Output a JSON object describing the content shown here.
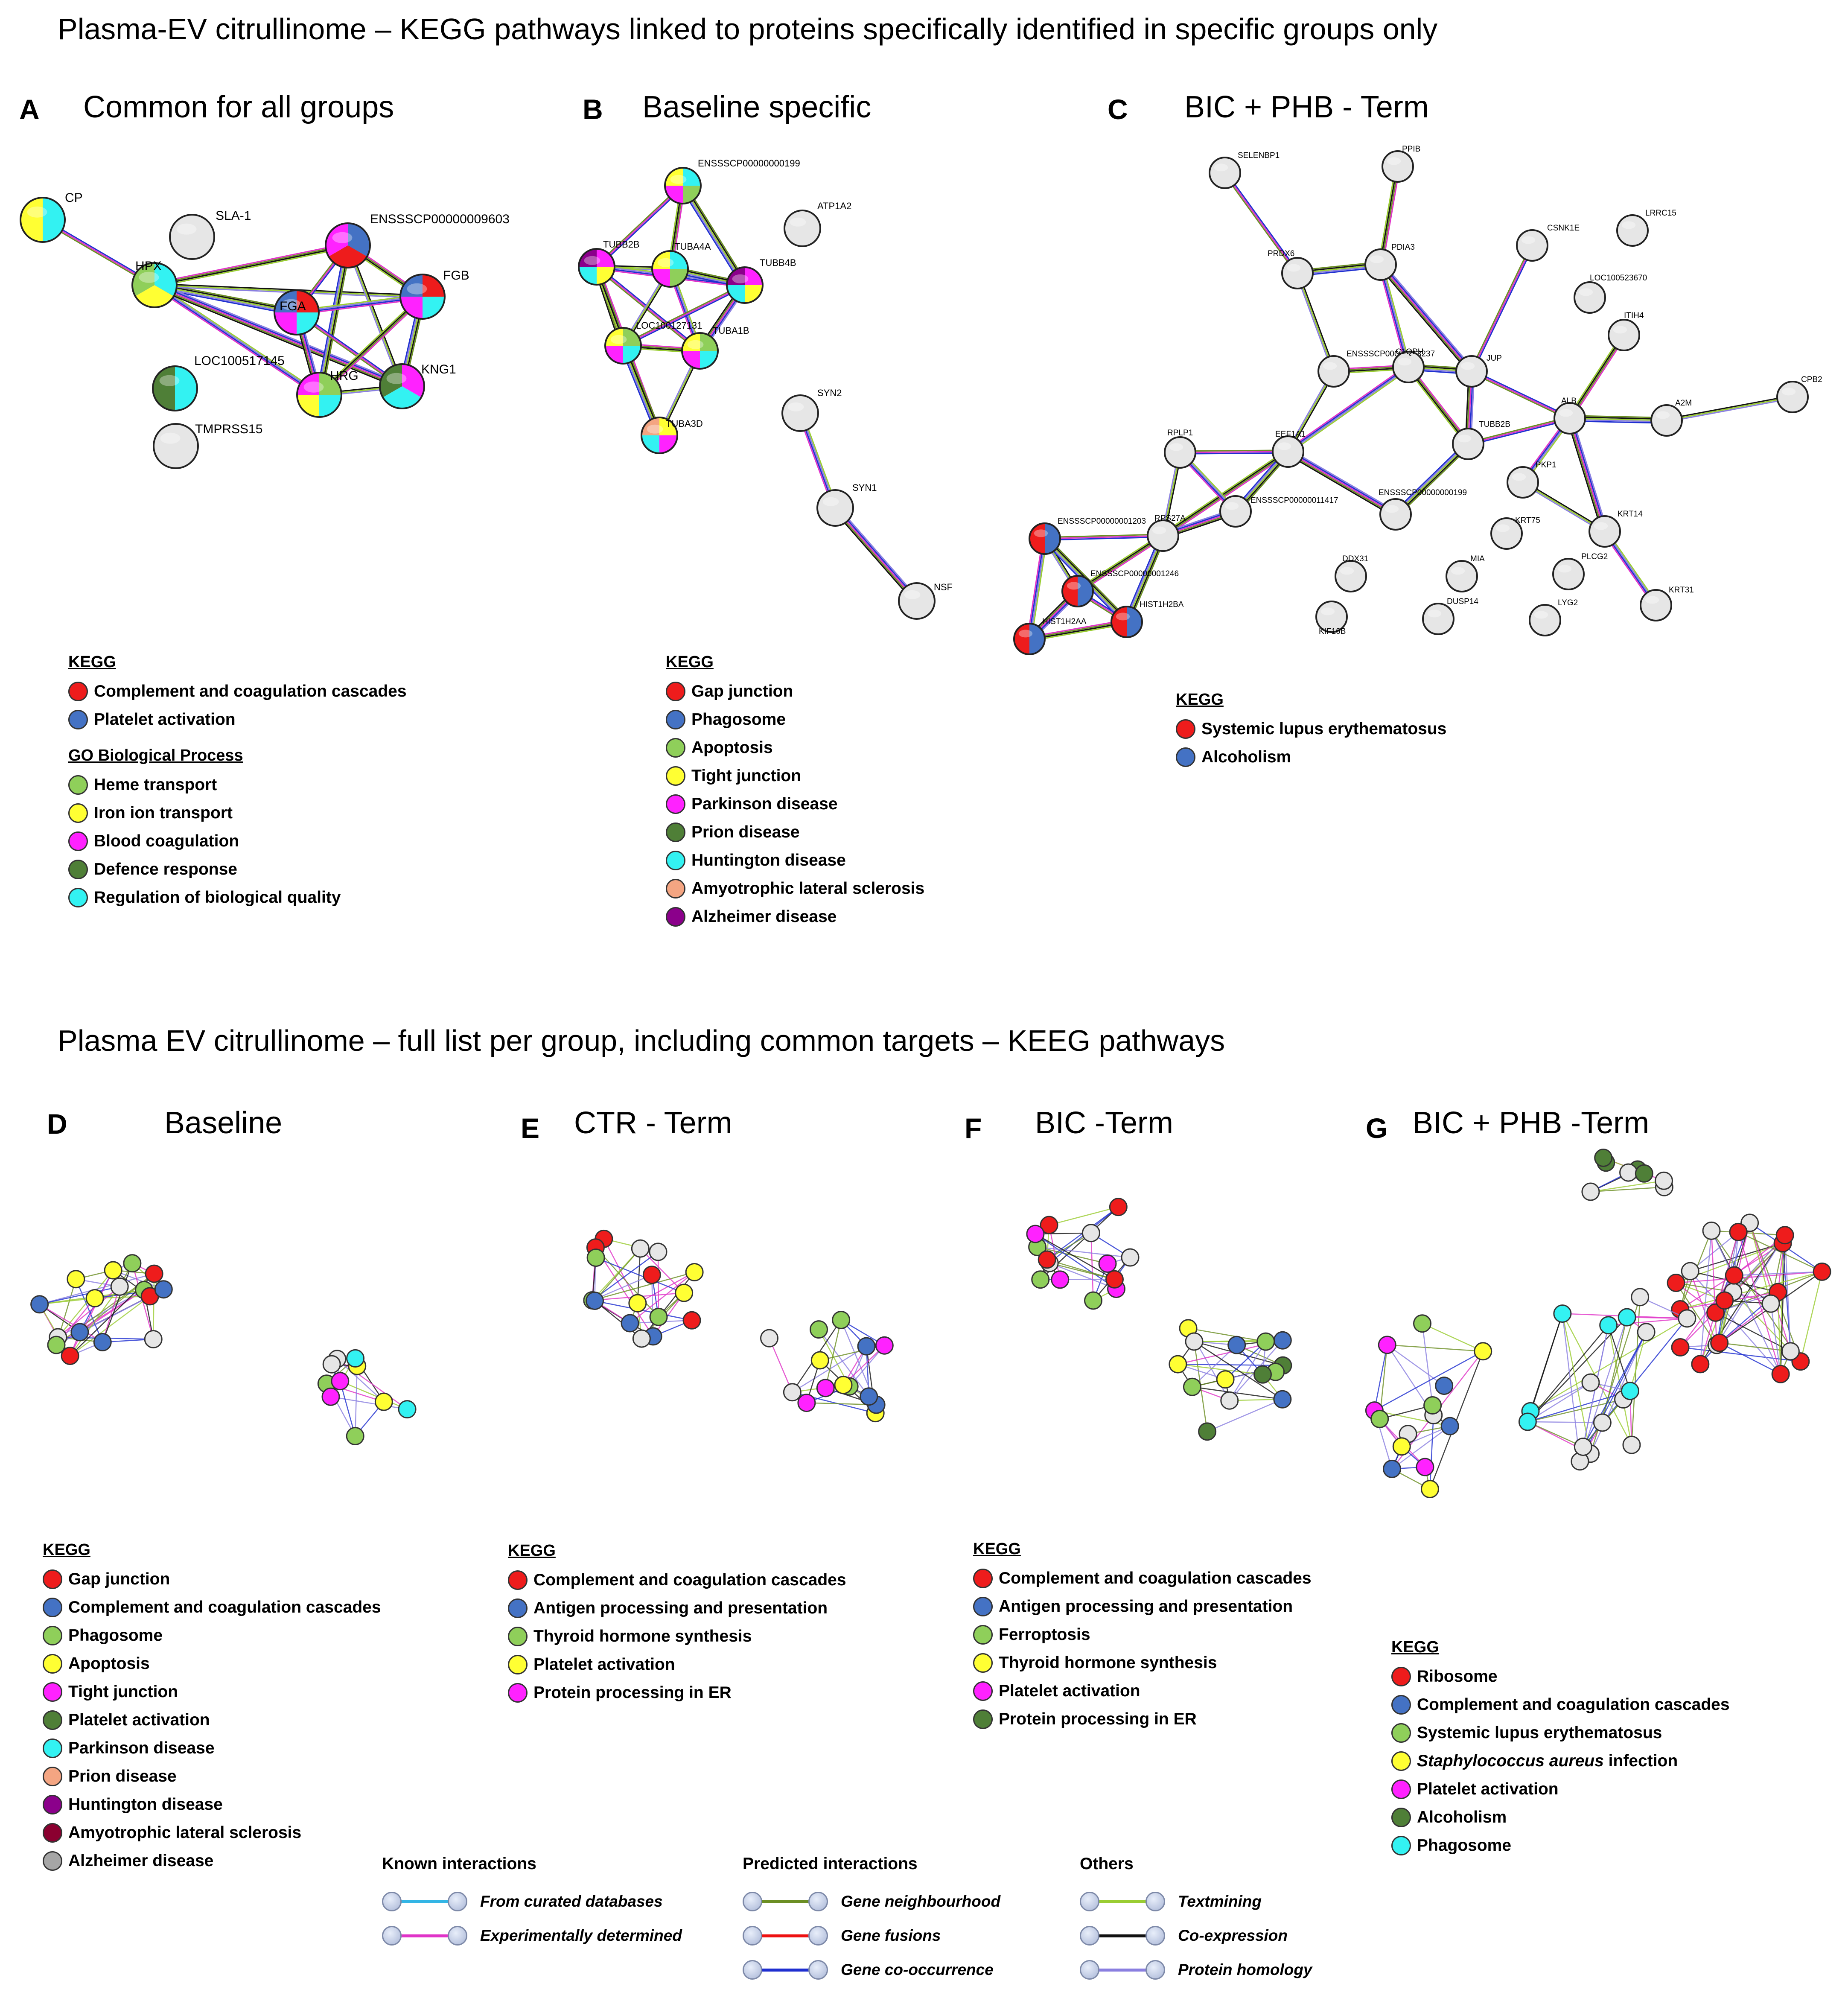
{
  "titles": {
    "top": "Plasma-EV citrullinome – KEGG pathways linked to proteins specifically identified in specific groups only",
    "bottom": "Plasma EV citrullinome – full list per group, including common targets – KEEG pathways"
  },
  "panels": {
    "A": {
      "letter": "A",
      "title": "Common for all groups"
    },
    "B": {
      "letter": "B",
      "title": "Baseline specific"
    },
    "C": {
      "letter": "C",
      "title": "BIC + PHB - Term"
    },
    "D": {
      "letter": "D",
      "title": "Baseline"
    },
    "E": {
      "letter": "E",
      "title": "CTR - Term"
    },
    "F": {
      "letter": "F",
      "title": "BIC -Term"
    },
    "G": {
      "letter": "G",
      "title": "BIC + PHB -Term"
    }
  },
  "legends": {
    "A": {
      "head": "KEGG",
      "items": [
        {
          "label": "Complement and coagulation  cascades",
          "color": "#ee1c1c"
        },
        {
          "label": "Platelet activation",
          "color": "#4472c4"
        }
      ],
      "go_head": "GO Biological  Process",
      "go_items": [
        {
          "label": "Heme transport",
          "color": "#8fcf5a"
        },
        {
          "label": "Iron ion transport",
          "color": "#ffff33"
        },
        {
          "label": "Blood coagulation",
          "color": "#ff22ff"
        },
        {
          "label": "Defence response",
          "color": "#4f7f37"
        },
        {
          "label": "Regulation of biological  quality",
          "color": "#33f2f2"
        }
      ]
    },
    "B": {
      "head": "KEGG",
      "items": [
        {
          "label": "Gap junction",
          "color": "#ee1c1c"
        },
        {
          "label": "Phagosome",
          "color": "#4472c4"
        },
        {
          "label": "Apoptosis",
          "color": "#8fcf5a"
        },
        {
          "label": "Tight junction",
          "color": "#ffff33"
        },
        {
          "label": "Parkinson  disease",
          "color": "#ff22ff"
        },
        {
          "label": "Prion disease",
          "color": "#4f7f37"
        },
        {
          "label": "Huntington disease",
          "color": "#33f2f2"
        },
        {
          "label": "Amyotrophic lateral sclerosis",
          "color": "#f4a582"
        },
        {
          "label": "Alzheimer disease",
          "color": "#8b008b"
        }
      ]
    },
    "C": {
      "head": "KEGG",
      "items": [
        {
          "label": "Systemic lupus erythematosus",
          "color": "#ee1c1c"
        },
        {
          "label": "Alcoholism",
          "color": "#4472c4"
        }
      ]
    },
    "D": {
      "head": "KEGG",
      "items": [
        {
          "label": "Gap junction",
          "color": "#ee1c1c"
        },
        {
          "label": "Complement and coagulation  cascades",
          "color": "#4472c4"
        },
        {
          "label": "Phagosome",
          "color": "#8fcf5a"
        },
        {
          "label": "Apoptosis",
          "color": "#ffff33"
        },
        {
          "label": "Tight junction",
          "color": "#ff22ff"
        },
        {
          "label": "Platelet activation",
          "color": "#4f7f37"
        },
        {
          "label": "Parkinson  disease",
          "color": "#33f2f2"
        },
        {
          "label": "Prion disease",
          "color": "#f4a582"
        },
        {
          "label": "Huntington disease",
          "color": "#8b008b"
        },
        {
          "label": "Amyotrophic lateral sclerosis",
          "color": "#8b0030"
        },
        {
          "label": "Alzheimer disease",
          "color": "#a6a6a6"
        }
      ]
    },
    "E": {
      "head": "KEGG",
      "items": [
        {
          "label": "Complement and coagulation  cascades",
          "color": "#ee1c1c"
        },
        {
          "label": "Antigen processing  and presentation",
          "color": "#4472c4"
        },
        {
          "label": "Thyroid hormone synthesis",
          "color": "#8fcf5a"
        },
        {
          "label": "Platelet activation",
          "color": "#ffff33"
        },
        {
          "label": "Protein processing in ER",
          "color": "#ff22ff"
        }
      ]
    },
    "F": {
      "head": "KEGG",
      "items": [
        {
          "label": "Complement and coagulation  cascades",
          "color": "#ee1c1c"
        },
        {
          "label": "Antigen processing and presentation",
          "color": "#4472c4"
        },
        {
          "label": "Ferroptosis",
          "color": "#8fcf5a"
        },
        {
          "label": "Thyroid hormone synthesis",
          "color": "#ffff33"
        },
        {
          "label": "Platelet activation",
          "color": "#ff22ff"
        },
        {
          "label": "Protein processing in ER",
          "color": "#4f7f37"
        }
      ]
    },
    "G": {
      "head": "KEGG",
      "items": [
        {
          "label": "Ribosome",
          "color": "#ee1c1c"
        },
        {
          "label": "Complement and coagulation  cascades",
          "color": "#4472c4"
        },
        {
          "label": "Systemic lupus erythematosus",
          "color": "#8fcf5a"
        },
        {
          "label": "Staphylococcus aureus infection",
          "color": "#ffff33"
        },
        {
          "label": "Platelet activation",
          "color": "#ff22ff"
        },
        {
          "label": "Alcoholism",
          "color": "#4f7f37"
        },
        {
          "label": "Phagosome",
          "color": "#33f2f2"
        }
      ]
    }
  },
  "interaction_key": {
    "known": {
      "head": "Known interactions",
      "items": [
        {
          "label": "From curated databases",
          "color": "#33b5e5"
        },
        {
          "label": "Experimentally  determined",
          "color": "#e033c8"
        }
      ]
    },
    "predicted": {
      "head": "Predicted interactions",
      "items": [
        {
          "label": "Gene neighbourhood",
          "color": "#6b8e23"
        },
        {
          "label": "Gene fusions",
          "color": "#ee1111"
        },
        {
          "label": "Gene co-occurrence",
          "color": "#1f2fd0"
        }
      ]
    },
    "others": {
      "head": "Others",
      "items": [
        {
          "label": "Textmining",
          "color": "#9acd32"
        },
        {
          "label": "Co-expression",
          "color": "#111111"
        },
        {
          "label": "Protein homology",
          "color": "#8a7fe0"
        }
      ]
    }
  },
  "networks": {
    "A": {
      "nodes": [
        {
          "id": "CP",
          "label": "CP",
          "colors": [
            "#33f2f2",
            "#ffff33"
          ]
        },
        {
          "id": "SLA1",
          "label": "SLA-1",
          "colors": [
            "#e6e6e6"
          ]
        },
        {
          "id": "HPX",
          "label": "HPX",
          "colors": [
            "#33f2f2",
            "#ffff33",
            "#8fcf5a"
          ]
        },
        {
          "id": "ENS9603",
          "label": "ENSSSCP00000009603",
          "colors": [
            "#4472c4",
            "#ee1c1c",
            "#ff22ff"
          ]
        },
        {
          "id": "FGA",
          "label": "FGA",
          "colors": [
            "#ee1c1c",
            "#33f2f2",
            "#ff22ff",
            "#4472c4"
          ]
        },
        {
          "id": "FGB",
          "label": "FGB",
          "colors": [
            "#ee1c1c",
            "#33f2f2",
            "#ff22ff",
            "#4472c4"
          ]
        },
        {
          "id": "LOC145",
          "label": "LOC100517145",
          "colors": [
            "#33f2f2",
            "#4f7f37"
          ]
        },
        {
          "id": "HRG",
          "label": "HRG",
          "colors": [
            "#8fcf5a",
            "#33f2f2",
            "#ffff33",
            "#ff22ff"
          ]
        },
        {
          "id": "KNG1",
          "label": "KNG1",
          "colors": [
            "#ff22ff",
            "#33f2f2",
            "#4f7f37"
          ]
        },
        {
          "id": "TMPRSS15",
          "label": "TMPRSS15",
          "colors": [
            "#e6e6e6"
          ]
        }
      ],
      "edges": [
        [
          "CP",
          "HPX"
        ],
        [
          "HPX",
          "ENS9603"
        ],
        [
          "HPX",
          "FGA"
        ],
        [
          "HPX",
          "FGB"
        ],
        [
          "HPX",
          "HRG"
        ],
        [
          "HPX",
          "KNG1"
        ],
        [
          "ENS9603",
          "FGA"
        ],
        [
          "ENS9603",
          "FGB"
        ],
        [
          "ENS9603",
          "HRG"
        ],
        [
          "ENS9603",
          "KNG1"
        ],
        [
          "FGA",
          "FGB"
        ],
        [
          "FGA",
          "HRG"
        ],
        [
          "FGA",
          "KNG1"
        ],
        [
          "FGB",
          "HRG"
        ],
        [
          "FGB",
          "KNG1"
        ],
        [
          "HRG",
          "KNG1"
        ]
      ]
    },
    "B": {
      "nodes": [
        {
          "id": "ENS199",
          "label": "ENSSSCP00000000199",
          "colors": [
            "#33f2f2",
            "#8fcf5a",
            "#ff22ff",
            "#ffff33"
          ]
        },
        {
          "id": "ATP1A2",
          "label": "ATP1A2",
          "colors": [
            "#e6e6e6"
          ]
        },
        {
          "id": "TUBB2B",
          "label": "TUBB2B",
          "colors": [
            "#ff22ff",
            "#ffff33",
            "#33f2f2",
            "#8b008b"
          ]
        },
        {
          "id": "TUBA4A",
          "label": "TUBA4A",
          "colors": [
            "#33f2f2",
            "#8fcf5a",
            "#ff22ff",
            "#ffff33"
          ]
        },
        {
          "id": "TUBB4B",
          "label": "TUBB4B",
          "colors": [
            "#ff22ff",
            "#ffff33",
            "#33f2f2",
            "#8b008b"
          ]
        },
        {
          "id": "LOC131",
          "label": "LOC100127131",
          "colors": [
            "#8fcf5a",
            "#33f2f2",
            "#ff22ff",
            "#ffff33"
          ]
        },
        {
          "id": "TUBA1B",
          "label": "TUBA1B",
          "colors": [
            "#8fcf5a",
            "#33f2f2",
            "#ff22ff",
            "#ffff33"
          ]
        },
        {
          "id": "TUBA3D",
          "label": "TUBA3D",
          "colors": [
            "#ffff33",
            "#ff22ff",
            "#33f2f2",
            "#f4a582"
          ]
        },
        {
          "id": "SYN2",
          "label": "SYN2",
          "colors": [
            "#e6e6e6"
          ]
        },
        {
          "id": "SYN1",
          "label": "SYN1",
          "colors": [
            "#e6e6e6"
          ]
        },
        {
          "id": "NSF",
          "label": "NSF",
          "colors": [
            "#e6e6e6"
          ]
        }
      ],
      "edges": [
        [
          "ENS199",
          "TUBB2B"
        ],
        [
          "ENS199",
          "TUBA4A"
        ],
        [
          "ENS199",
          "TUBB4B"
        ],
        [
          "TUBB2B",
          "TUBA4A"
        ],
        [
          "TUBB2B",
          "TUBB4B"
        ],
        [
          "TUBB2B",
          "LOC131"
        ],
        [
          "TUBB2B",
          "TUBA1B"
        ],
        [
          "TUBB2B",
          "TUBA3D"
        ],
        [
          "TUBA4A",
          "TUBB4B"
        ],
        [
          "TUBA4A",
          "LOC131"
        ],
        [
          "TUBA4A",
          "TUBA1B"
        ],
        [
          "TUBB4B",
          "TUBA1B"
        ],
        [
          "TUBB4B",
          "LOC131"
        ],
        [
          "LOC131",
          "TUBA1B"
        ],
        [
          "LOC131",
          "TUBA3D"
        ],
        [
          "TUBA1B",
          "TUBA3D"
        ],
        [
          "SYN2",
          "SYN1"
        ],
        [
          "SYN1",
          "NSF"
        ]
      ]
    },
    "C": {
      "nodes": [
        {
          "id": "SELENBP1",
          "label": "SELENBP1",
          "colors": [
            "#e6e6e6"
          ]
        },
        {
          "id": "PPIB",
          "label": "PPIB",
          "colors": [
            "#e6e6e6"
          ]
        },
        {
          "id": "CSNK1E",
          "label": "CSNK1E",
          "colors": [
            "#e6e6e6"
          ]
        },
        {
          "id": "LRRC15",
          "label": "LRRC15",
          "colors": [
            "#e6e6e6"
          ]
        },
        {
          "id": "PRDX6",
          "label": "PRDX6",
          "colors": [
            "#e6e6e6"
          ]
        },
        {
          "id": "PDIA3",
          "label": "PDIA3",
          "colors": [
            "#e6e6e6"
          ]
        },
        {
          "id": "LOC670",
          "label": "LOC100523670",
          "colors": [
            "#e6e6e6"
          ]
        },
        {
          "id": "ITIH4",
          "label": "ITIH4",
          "colors": [
            "#e6e6e6"
          ]
        },
        {
          "id": "ENS3237",
          "label": "ENSSSCP00000013237",
          "colors": [
            "#e6e6e6"
          ]
        },
        {
          "id": "G1Q",
          "label": "C1QPH",
          "colors": [
            "#e6e6e6"
          ]
        },
        {
          "id": "JUP",
          "label": "JUP",
          "colors": [
            "#e6e6e6"
          ]
        },
        {
          "id": "ALB",
          "label": "ALB",
          "colors": [
            "#e6e6e6"
          ]
        },
        {
          "id": "A2M",
          "label": "A2M",
          "colors": [
            "#e6e6e6"
          ]
        },
        {
          "id": "CPB2",
          "label": "CPB2",
          "colors": [
            "#e6e6e6"
          ]
        },
        {
          "id": "RPLP1",
          "label": "RPLP1",
          "colors": [
            "#e6e6e6"
          ]
        },
        {
          "id": "EEF1A1",
          "label": "EEF1A1",
          "colors": [
            "#e6e6e6"
          ]
        },
        {
          "id": "TUBB2B",
          "label": "TUBB2B",
          "colors": [
            "#e6e6e6"
          ]
        },
        {
          "id": "PKP1",
          "label": "PKP1",
          "colors": [
            "#e6e6e6"
          ]
        },
        {
          "id": "ENS1417",
          "label": "ENSSSCP00000011417",
          "colors": [
            "#e6e6e6"
          ]
        },
        {
          "id": "ENS199",
          "label": "ENSSSCP00000000199",
          "colors": [
            "#e6e6e6"
          ]
        },
        {
          "id": "KRT75",
          "label": "KRT75",
          "colors": [
            "#e6e6e6"
          ]
        },
        {
          "id": "KRT14",
          "label": "KRT14",
          "colors": [
            "#e6e6e6"
          ]
        },
        {
          "id": "ENS1203",
          "label": "ENSSSCP00000001203",
          "colors": [
            "#4472c4",
            "#ee1c1c"
          ]
        },
        {
          "id": "RPS27A",
          "label": "RPS27A",
          "colors": [
            "#e6e6e6"
          ]
        },
        {
          "id": "ENS1246",
          "label": "ENSSSCP00000001246",
          "colors": [
            "#4472c4",
            "#ee1c1c"
          ]
        },
        {
          "id": "DDX31",
          "label": "DDX31",
          "colors": [
            "#e6e6e6"
          ]
        },
        {
          "id": "MIA",
          "label": "MIA",
          "colors": [
            "#e6e6e6"
          ]
        },
        {
          "id": "PLCG2",
          "label": "PLCG2",
          "colors": [
            "#e6e6e6"
          ]
        },
        {
          "id": "HIST1H2AA",
          "label": "HIST1H2AA",
          "colors": [
            "#4472c4",
            "#ee1c1c"
          ]
        },
        {
          "id": "HIST1H2BA",
          "label": "HIST1H2BA",
          "colors": [
            "#4472c4",
            "#ee1c1c"
          ]
        },
        {
          "id": "KIF16B",
          "label": "KIF16B",
          "colors": [
            "#e6e6e6"
          ]
        },
        {
          "id": "DUSP14",
          "label": "DUSP14",
          "colors": [
            "#e6e6e6"
          ]
        },
        {
          "id": "LYG2",
          "label": "LYG2",
          "colors": [
            "#e6e6e6"
          ]
        },
        {
          "id": "KRT31",
          "label": "KRT31",
          "colors": [
            "#e6e6e6"
          ]
        }
      ],
      "edges": [
        [
          "SELENBP1",
          "PRDX6"
        ],
        [
          "PPIB",
          "PDIA3"
        ],
        [
          "PRDX6",
          "PDIA3"
        ],
        [
          "PRDX6",
          "ENS3237"
        ],
        [
          "PDIA3",
          "G1Q"
        ],
        [
          "PDIA3",
          "JUP"
        ],
        [
          "CSNK1E",
          "JUP"
        ],
        [
          "ENS3237",
          "G1Q"
        ],
        [
          "G1Q",
          "JUP"
        ],
        [
          "ENS3237",
          "EEF1A1"
        ],
        [
          "G1Q",
          "EEF1A1"
        ],
        [
          "JUP",
          "TUBB2B"
        ],
        [
          "JUP",
          "ALB"
        ],
        [
          "ITIH4",
          "ALB"
        ],
        [
          "ALB",
          "A2M"
        ],
        [
          "A2M",
          "CPB2"
        ],
        [
          "ALB",
          "PKP1"
        ],
        [
          "ALB",
          "KRT14"
        ],
        [
          "ALB",
          "TUBB2B"
        ],
        [
          "G1Q",
          "TUBB2B"
        ],
        [
          "TUBB2B",
          "ENS199"
        ],
        [
          "PKP1",
          "KRT14"
        ],
        [
          "KRT14",
          "KRT31"
        ],
        [
          "EEF1A1",
          "ENS199"
        ],
        [
          "EEF1A1",
          "RPLP1"
        ],
        [
          "EEF1A1",
          "RPS27A"
        ],
        [
          "EEF1A1",
          "ENS1417"
        ],
        [
          "RPLP1",
          "RPS27A"
        ],
        [
          "RPLP1",
          "ENS1417"
        ],
        [
          "RPS27A",
          "ENS1417"
        ],
        [
          "RPS27A",
          "ENS1203"
        ],
        [
          "RPS27A",
          "ENS1246"
        ],
        [
          "RPS27A",
          "HIST1H2BA"
        ],
        [
          "ENS1203",
          "ENS1246"
        ],
        [
          "ENS1203",
          "HIST1H2AA"
        ],
        [
          "ENS1246",
          "HIST1H2AA"
        ],
        [
          "ENS1246",
          "HIST1H2BA"
        ],
        [
          "HIST1H2AA",
          "HIST1H2BA"
        ],
        [
          "ENS1203",
          "HIST1H2BA"
        ]
      ]
    }
  }
}
